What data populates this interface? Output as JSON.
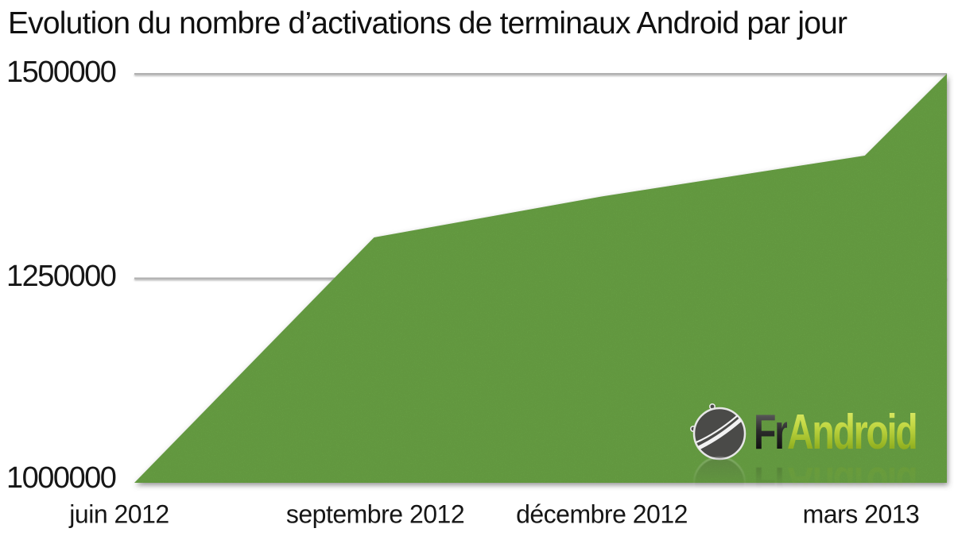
{
  "title": "Evolution du nombre d’activations de terminaux Android par jour",
  "chart_data": {
    "type": "area",
    "title": "Evolution du nombre d’activations de terminaux Android par jour",
    "x_tick_labels": [
      "juin 2012",
      "septembre 2012",
      "décembre 2012",
      "mars 2013"
    ],
    "y_tick_labels": [
      "1500000",
      "1250000",
      "1000000"
    ],
    "ylim": [
      1000000,
      1500000
    ],
    "y_gridlines": [
      1250000,
      1500000
    ],
    "grid": "horizontal-only",
    "legend": "none",
    "note": "Aire verte pleine; dernier point au bord droit du graphique, après le repère mars 2013",
    "series": [
      {
        "name": "Activations de terminaux Android par jour",
        "points": [
          {
            "x_label": "juin 2012",
            "x_frac": 0.0,
            "value": 1000000
          },
          {
            "x_label": "septembre 2012",
            "x_frac": 0.295,
            "value": 1300000
          },
          {
            "x_label": "décembre 2012",
            "x_frac": 0.575,
            "value": 1350000
          },
          {
            "x_label": "mars 2013",
            "x_frac": 0.899,
            "value": 1400000
          },
          {
            "x_label": "",
            "x_frac": 1.0,
            "value": 1500000
          }
        ]
      }
    ],
    "colors": {
      "area_fill": "#6FAD49",
      "gridline": "#AFAFAF",
      "axis_line": "#333333",
      "background": "#FFFFFF",
      "text": "#141414"
    }
  },
  "watermark": {
    "name": "FrAndroid",
    "text_fr": "Fr",
    "text_android": "Android"
  }
}
